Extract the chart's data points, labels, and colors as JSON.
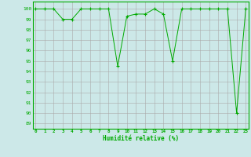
{
  "x": [
    0,
    1,
    2,
    3,
    4,
    5,
    6,
    7,
    8,
    9,
    10,
    11,
    12,
    13,
    14,
    15,
    16,
    17,
    18,
    19,
    20,
    21,
    22,
    23
  ],
  "y": [
    100,
    100,
    100,
    99,
    99,
    100,
    100,
    100,
    100,
    94.5,
    99.3,
    99.5,
    99.5,
    100,
    99.5,
    95,
    100,
    100,
    100,
    100,
    100,
    100,
    90,
    100
  ],
  "xlabel": "Humidité relative (%)",
  "ylabel_ticks": [
    89,
    90,
    91,
    92,
    93,
    94,
    95,
    96,
    97,
    98,
    99,
    100
  ],
  "xlim": [
    -0.3,
    23.3
  ],
  "ylim": [
    88.5,
    100.7
  ],
  "line_color": "#00aa00",
  "marker_color": "#00aa00",
  "bg_color": "#cce8e8",
  "grid_major_color": "#aaaaaa",
  "grid_minor_color": "#bbcccc"
}
